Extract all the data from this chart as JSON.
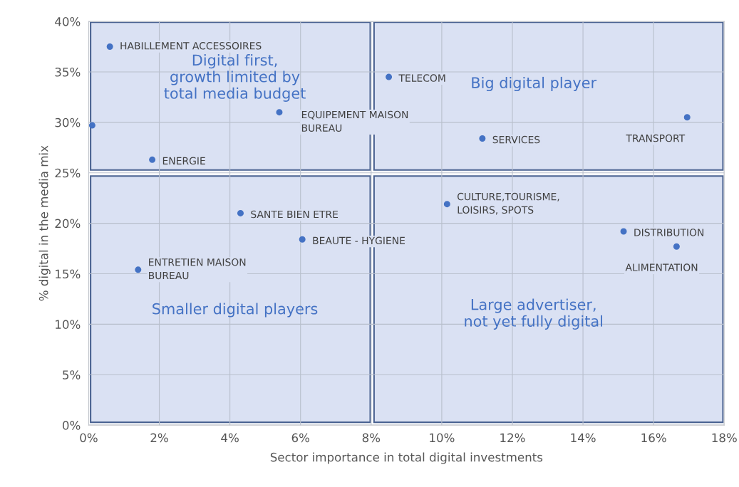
{
  "chart_data": {
    "type": "scatter",
    "xlabel": "Sector importance in total digital investments",
    "ylabel": "% digital in the media mix",
    "x": [
      0.1,
      0.6,
      5.4,
      1.8,
      8.5,
      11.15,
      16.95,
      10.15,
      4.3,
      6.05,
      1.4,
      15.15,
      16.65
    ],
    "series": [
      {
        "color": "#4472c4",
        "values": [
          29.7,
          37.5,
          31.0,
          26.3,
          34.5,
          28.4,
          30.5,
          21.9,
          21.0,
          18.4,
          15.4,
          19.2,
          17.7
        ]
      }
    ],
    "marker": "circle",
    "xlim": [
      0,
      18
    ],
    "xticks": [
      {
        "value": 0,
        "label": "0%"
      },
      {
        "value": 2,
        "label": "2%"
      },
      {
        "value": 4,
        "label": "4%"
      },
      {
        "value": 6,
        "label": "6%"
      },
      {
        "value": 8,
        "label": "8%"
      },
      {
        "value": 10,
        "label": "10%"
      },
      {
        "value": 12,
        "label": "12%"
      },
      {
        "value": 14,
        "label": "14%"
      },
      {
        "value": 16,
        "label": "16%"
      },
      {
        "value": 18,
        "label": "18%"
      }
    ],
    "ylim": [
      0,
      40
    ],
    "yticks": [
      {
        "value": 0,
        "label": "0%"
      },
      {
        "value": 5,
        "label": "5%"
      },
      {
        "value": 10,
        "label": "10%"
      },
      {
        "value": 15,
        "label": "15%"
      },
      {
        "value": 20,
        "label": "20%"
      },
      {
        "value": 25,
        "label": "25%"
      },
      {
        "value": 30,
        "label": "30%"
      },
      {
        "value": 35,
        "label": "35%"
      },
      {
        "value": 40,
        "label": "40%"
      }
    ],
    "grid": true,
    "annotations": [
      {
        "text": "HABILLEMENT ACCESSOIRES",
        "x": 0.6,
        "y": 37.5
      },
      {
        "text": "EQUIPEMENT MAISON\nBUREAU",
        "x": 5.4,
        "y": 31.0
      },
      {
        "text": "ENERGIE",
        "x": 1.8,
        "y": 26.3
      },
      {
        "text": "TELECOM",
        "x": 8.5,
        "y": 34.5
      },
      {
        "text": "SERVICES",
        "x": 11.15,
        "y": 28.4
      },
      {
        "text": "TRANSPORT",
        "x": 16.95,
        "y": 30.5
      },
      {
        "text": "CULTURE,TOURISME,\nLOISIRS, SPOTS",
        "x": 10.15,
        "y": 21.9
      },
      {
        "text": "SANTE BIEN ETRE",
        "x": 4.3,
        "y": 21.0
      },
      {
        "text": "BEAUTE - HYGIENE",
        "x": 6.05,
        "y": 18.4
      },
      {
        "text": "ENTRETIEN MAISON\nBUREAU",
        "x": 1.4,
        "y": 15.4
      },
      {
        "text": "DISTRIBUTION",
        "x": 15.15,
        "y": 19.2
      },
      {
        "text": "ALIMENTATION",
        "x": 16.65,
        "y": 17.7
      },
      "Digital first,\ngrowth limited by\ntotal media budget",
      "Big digital player",
      "Smaller digital players",
      "Large advertiser,\nnot yet fully digital"
    ]
  }
}
